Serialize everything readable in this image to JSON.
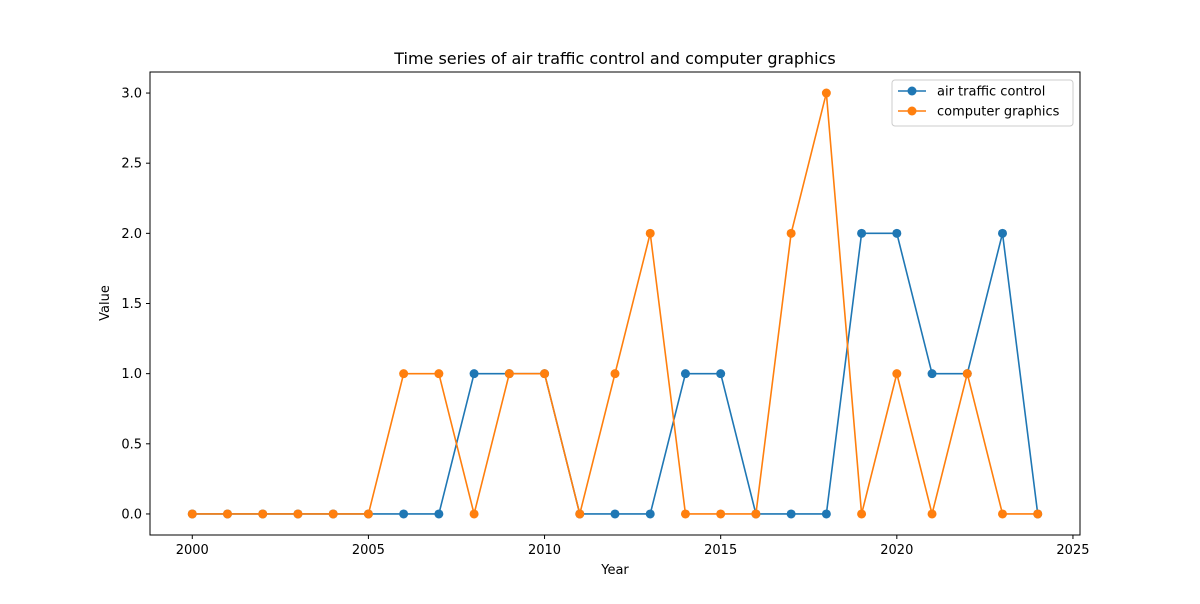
{
  "chart_data": {
    "type": "line",
    "title": "Time series of air traffic control and computer graphics",
    "xlabel": "Year",
    "ylabel": "Value",
    "xlim": [
      1998.8,
      2025.2
    ],
    "ylim": [
      -0.15,
      3.15
    ],
    "xticks": [
      2000,
      2005,
      2010,
      2015,
      2020,
      2025
    ],
    "yticks": [
      0.0,
      0.5,
      1.0,
      1.5,
      2.0,
      2.5,
      3.0
    ],
    "xtick_labels": [
      "2000",
      "2005",
      "2010",
      "2015",
      "2020",
      "2025"
    ],
    "ytick_labels": [
      "0.0",
      "0.5",
      "1.0",
      "1.5",
      "2.0",
      "2.5",
      "3.0"
    ],
    "grid": false,
    "legend_position": "top-right",
    "x": [
      2000,
      2001,
      2002,
      2003,
      2004,
      2005,
      2006,
      2007,
      2008,
      2009,
      2010,
      2011,
      2012,
      2013,
      2014,
      2015,
      2016,
      2017,
      2018,
      2019,
      2020,
      2021,
      2022,
      2023,
      2024
    ],
    "series": [
      {
        "name": "air traffic control",
        "color": "#1f77b4",
        "values": [
          0,
          0,
          0,
          0,
          0,
          0,
          0,
          0,
          1,
          1,
          1,
          0,
          0,
          0,
          1,
          1,
          0,
          0,
          0,
          2,
          2,
          1,
          1,
          2,
          0
        ]
      },
      {
        "name": "computer graphics",
        "color": "#ff7f0e",
        "values": [
          0,
          0,
          0,
          0,
          0,
          0,
          1,
          1,
          0,
          1,
          1,
          0,
          1,
          2,
          0,
          0,
          0,
          2,
          3,
          0,
          1,
          0,
          1,
          0,
          0
        ]
      }
    ]
  }
}
